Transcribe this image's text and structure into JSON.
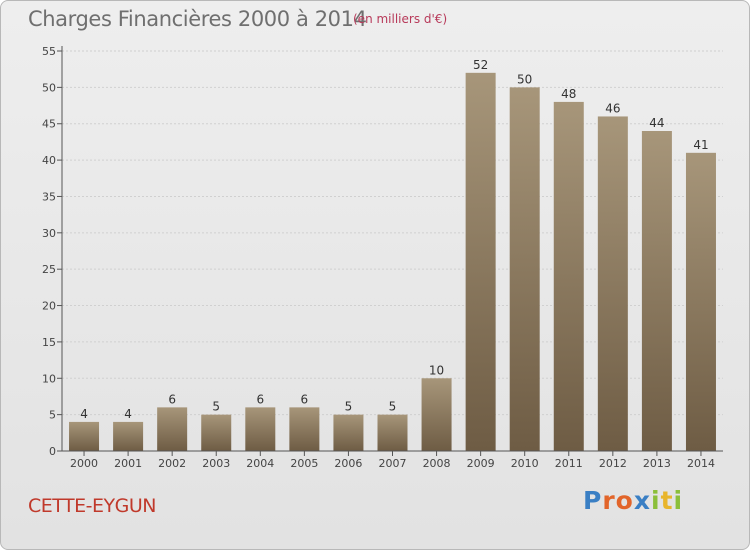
{
  "header": {
    "title": "Charges Financières 2000 à 2014",
    "subtitle": "(en milliers d'€)"
  },
  "footer": {
    "commune": "CETTE-EYGUN",
    "logo_letters": [
      "P",
      "r",
      "o",
      "x",
      "i",
      "t",
      "i"
    ],
    "logo_colors": [
      "#3a7fc4",
      "#e2652a",
      "#e2652a",
      "#3a7fc4",
      "#8bbf3a",
      "#e8b52c",
      "#8bbf3a"
    ]
  },
  "colors": {
    "bar_top": "#a7967a",
    "bar_bottom": "#6e5c44",
    "grid": "#d0d0d0",
    "axis": "#555555"
  },
  "chart_data": {
    "type": "bar",
    "categories": [
      "2000",
      "2001",
      "2002",
      "2003",
      "2004",
      "2005",
      "2006",
      "2007",
      "2008",
      "2009",
      "2010",
      "2011",
      "2012",
      "2013",
      "2014"
    ],
    "values": [
      4,
      4,
      6,
      5,
      6,
      6,
      5,
      5,
      10,
      52,
      50,
      48,
      46,
      44,
      41
    ],
    "ylim": [
      0,
      55
    ],
    "yticks": [
      0,
      5,
      10,
      15,
      20,
      25,
      30,
      35,
      40,
      45,
      50,
      55
    ],
    "grid": true,
    "data_labels": true
  }
}
